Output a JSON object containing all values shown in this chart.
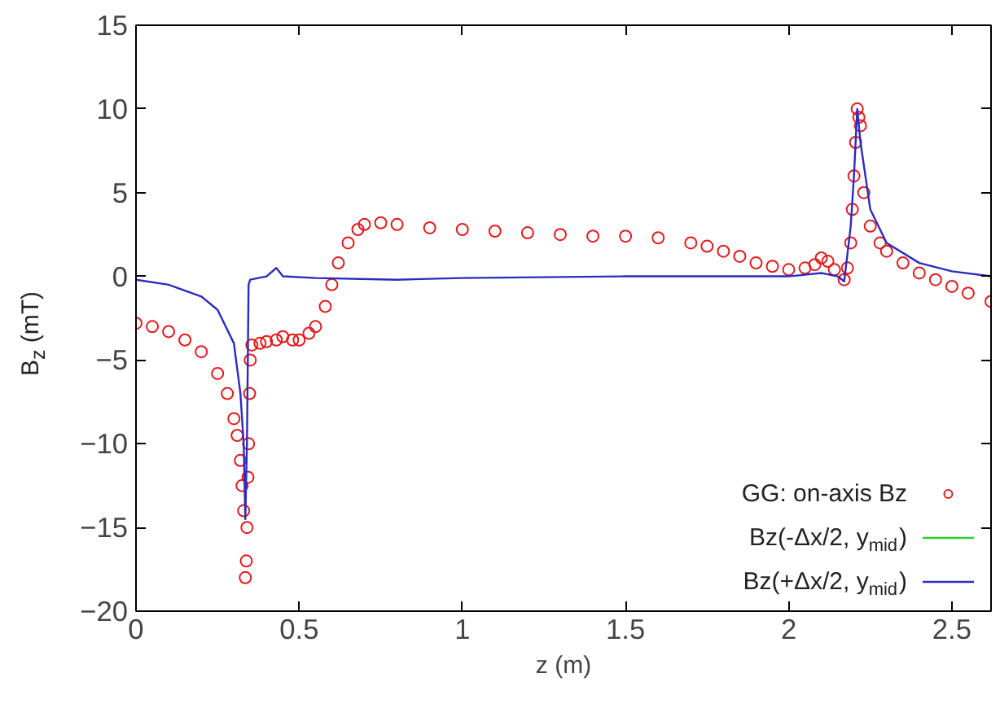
{
  "chart_data": {
    "type": "line",
    "xlabel": "z (m)",
    "ylabel": "B$_{z}$ (mT)",
    "xlim": [
      0,
      2.62
    ],
    "ylim": [
      -20,
      15
    ],
    "xticks": [
      0,
      0.5,
      1,
      1.5,
      2,
      2.5
    ],
    "yticks": [
      -20,
      -15,
      -10,
      -5,
      0,
      5,
      10,
      15
    ],
    "grid": false,
    "legend": "bottom right",
    "series": [
      {
        "name": "GG: on-axis Bz",
        "type": "scatter",
        "marker": "circle",
        "color": "#e41a1c",
        "x": [
          0,
          0.05,
          0.1,
          0.15,
          0.2,
          0.25,
          0.28,
          0.3,
          0.31,
          0.32,
          0.325,
          0.33,
          0.335,
          0.338,
          0.34,
          0.343,
          0.345,
          0.348,
          0.35,
          0.355,
          0.38,
          0.4,
          0.43,
          0.45,
          0.48,
          0.5,
          0.53,
          0.55,
          0.58,
          0.6,
          0.62,
          0.65,
          0.68,
          0.7,
          0.75,
          0.8,
          0.9,
          1.0,
          1.1,
          1.2,
          1.3,
          1.4,
          1.5,
          1.6,
          1.7,
          1.75,
          1.8,
          1.85,
          1.9,
          1.95,
          2.0,
          2.05,
          2.08,
          2.1,
          2.12,
          2.14,
          2.17,
          2.18,
          2.19,
          2.195,
          2.2,
          2.205,
          2.21,
          2.215,
          2.22,
          2.23,
          2.25,
          2.28,
          2.3,
          2.35,
          2.4,
          2.45,
          2.5,
          2.55,
          2.62
        ],
        "values": [
          -2.8,
          -3.0,
          -3.3,
          -3.8,
          -4.5,
          -5.8,
          -7.0,
          -8.5,
          -9.5,
          -11,
          -12.5,
          -14,
          -18,
          -17,
          -15,
          -12,
          -10,
          -7,
          -5,
          -4.1,
          -4.0,
          -3.9,
          -3.8,
          -3.6,
          -3.8,
          -3.8,
          -3.4,
          -3.0,
          -1.8,
          -0.5,
          0.8,
          2.0,
          2.8,
          3.1,
          3.2,
          3.1,
          2.9,
          2.8,
          2.7,
          2.6,
          2.5,
          2.4,
          2.4,
          2.3,
          2.0,
          1.8,
          1.5,
          1.2,
          0.8,
          0.6,
          0.4,
          0.5,
          0.7,
          1.1,
          0.9,
          0.4,
          -0.2,
          0.5,
          2.0,
          4.0,
          6.0,
          8.0,
          10,
          9.5,
          9.0,
          5.0,
          3.0,
          2.0,
          1.5,
          0.8,
          0.2,
          -0.2,
          -0.6,
          -1.0,
          -1.5
        ]
      },
      {
        "name": "Bz(-Δx/2, y$_{mid}$)",
        "marker": "none",
        "color": "#33cc33"
      },
      {
        "name": "Bz(+Δx/2, y$_{mid}$)",
        "marker": "none",
        "color": "#2b2bbf",
        "x": [
          0,
          0.1,
          0.2,
          0.25,
          0.3,
          0.32,
          0.33,
          0.335,
          0.34,
          0.345,
          0.35,
          0.4,
          0.43,
          0.45,
          0.55,
          0.8,
          1.0,
          1.5,
          2.0,
          2.1,
          2.15,
          2.17,
          2.19,
          2.2,
          2.21,
          2.22,
          2.25,
          2.3,
          2.4,
          2.5,
          2.62
        ],
        "values": [
          -0.2,
          -0.5,
          -1.2,
          -2.0,
          -4.0,
          -7.0,
          -10,
          -14.5,
          -10,
          -0.5,
          -0.2,
          0,
          0.5,
          0,
          -0.1,
          -0.2,
          -0.1,
          0,
          0,
          0.2,
          0,
          -0.3,
          3,
          6,
          10,
          8,
          4,
          2,
          0.8,
          0.3,
          0
        ]
      }
    ]
  }
}
